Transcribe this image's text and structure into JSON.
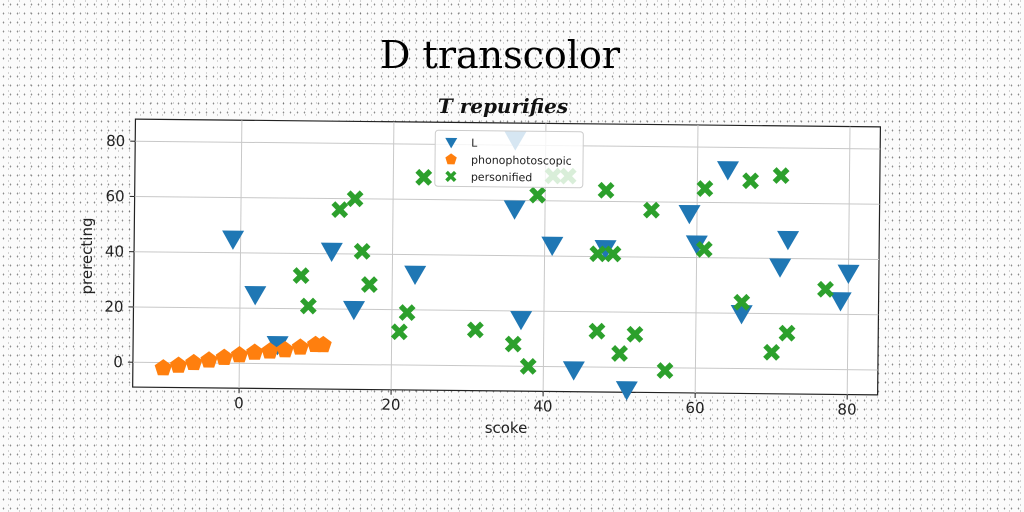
{
  "chart_data": {
    "type": "scatter",
    "title": "D transcolor",
    "subtitle": "T repurifies",
    "xlabel": "scoke",
    "ylabel": "prerecting",
    "xlim": [
      -14,
      84
    ],
    "ylim": [
      -9,
      88
    ],
    "xticks": [
      0,
      20,
      40,
      60,
      80
    ],
    "yticks": [
      0,
      20,
      40,
      60,
      80
    ],
    "grid": true,
    "legend_position": "top-center",
    "series": [
      {
        "name": "L",
        "marker": "triangle-down",
        "color": "#1f77b4",
        "points": [
          [
            -1,
            45
          ],
          [
            2,
            25
          ],
          [
            5,
            7
          ],
          [
            12,
            41
          ],
          [
            15,
            20
          ],
          [
            23,
            33
          ],
          [
            36,
            82
          ],
          [
            36,
            57
          ],
          [
            37,
            17
          ],
          [
            41,
            44
          ],
          [
            44,
            -1
          ],
          [
            48,
            43
          ],
          [
            51,
            -8
          ],
          [
            59,
            56
          ],
          [
            60,
            45
          ],
          [
            64,
            72
          ],
          [
            66,
            20
          ],
          [
            71,
            37
          ],
          [
            72,
            47
          ],
          [
            79,
            25
          ],
          [
            80,
            35
          ]
        ]
      },
      {
        "name": "phonophotoscopic",
        "marker": "pentagon",
        "color": "#ff7f0e",
        "points": [
          [
            -10,
            -2
          ],
          [
            -8,
            -1
          ],
          [
            -6,
            0
          ],
          [
            -4,
            1
          ],
          [
            -2,
            2
          ],
          [
            0,
            3
          ],
          [
            2,
            4
          ],
          [
            4,
            4.5
          ],
          [
            6,
            5
          ],
          [
            8,
            6
          ],
          [
            10,
            7
          ],
          [
            11,
            7
          ]
        ]
      },
      {
        "name": "personified",
        "marker": "x",
        "color": "#2ca02c",
        "points": [
          [
            8,
            32
          ],
          [
            9,
            21
          ],
          [
            13,
            56
          ],
          [
            15,
            60
          ],
          [
            16,
            41
          ],
          [
            17,
            29
          ],
          [
            21,
            12
          ],
          [
            22,
            19
          ],
          [
            24,
            68
          ],
          [
            31,
            13
          ],
          [
            36,
            8
          ],
          [
            38,
            0
          ],
          [
            39,
            62
          ],
          [
            41,
            69
          ],
          [
            43,
            69
          ],
          [
            47,
            13
          ],
          [
            47,
            41
          ],
          [
            48,
            64
          ],
          [
            49,
            41
          ],
          [
            50,
            5
          ],
          [
            52,
            12
          ],
          [
            54,
            57
          ],
          [
            56,
            -1
          ],
          [
            61,
            43
          ],
          [
            61,
            65
          ],
          [
            66,
            24
          ],
          [
            67,
            68
          ],
          [
            70,
            6
          ],
          [
            71,
            70
          ],
          [
            72,
            13
          ],
          [
            77,
            29
          ]
        ]
      }
    ]
  }
}
